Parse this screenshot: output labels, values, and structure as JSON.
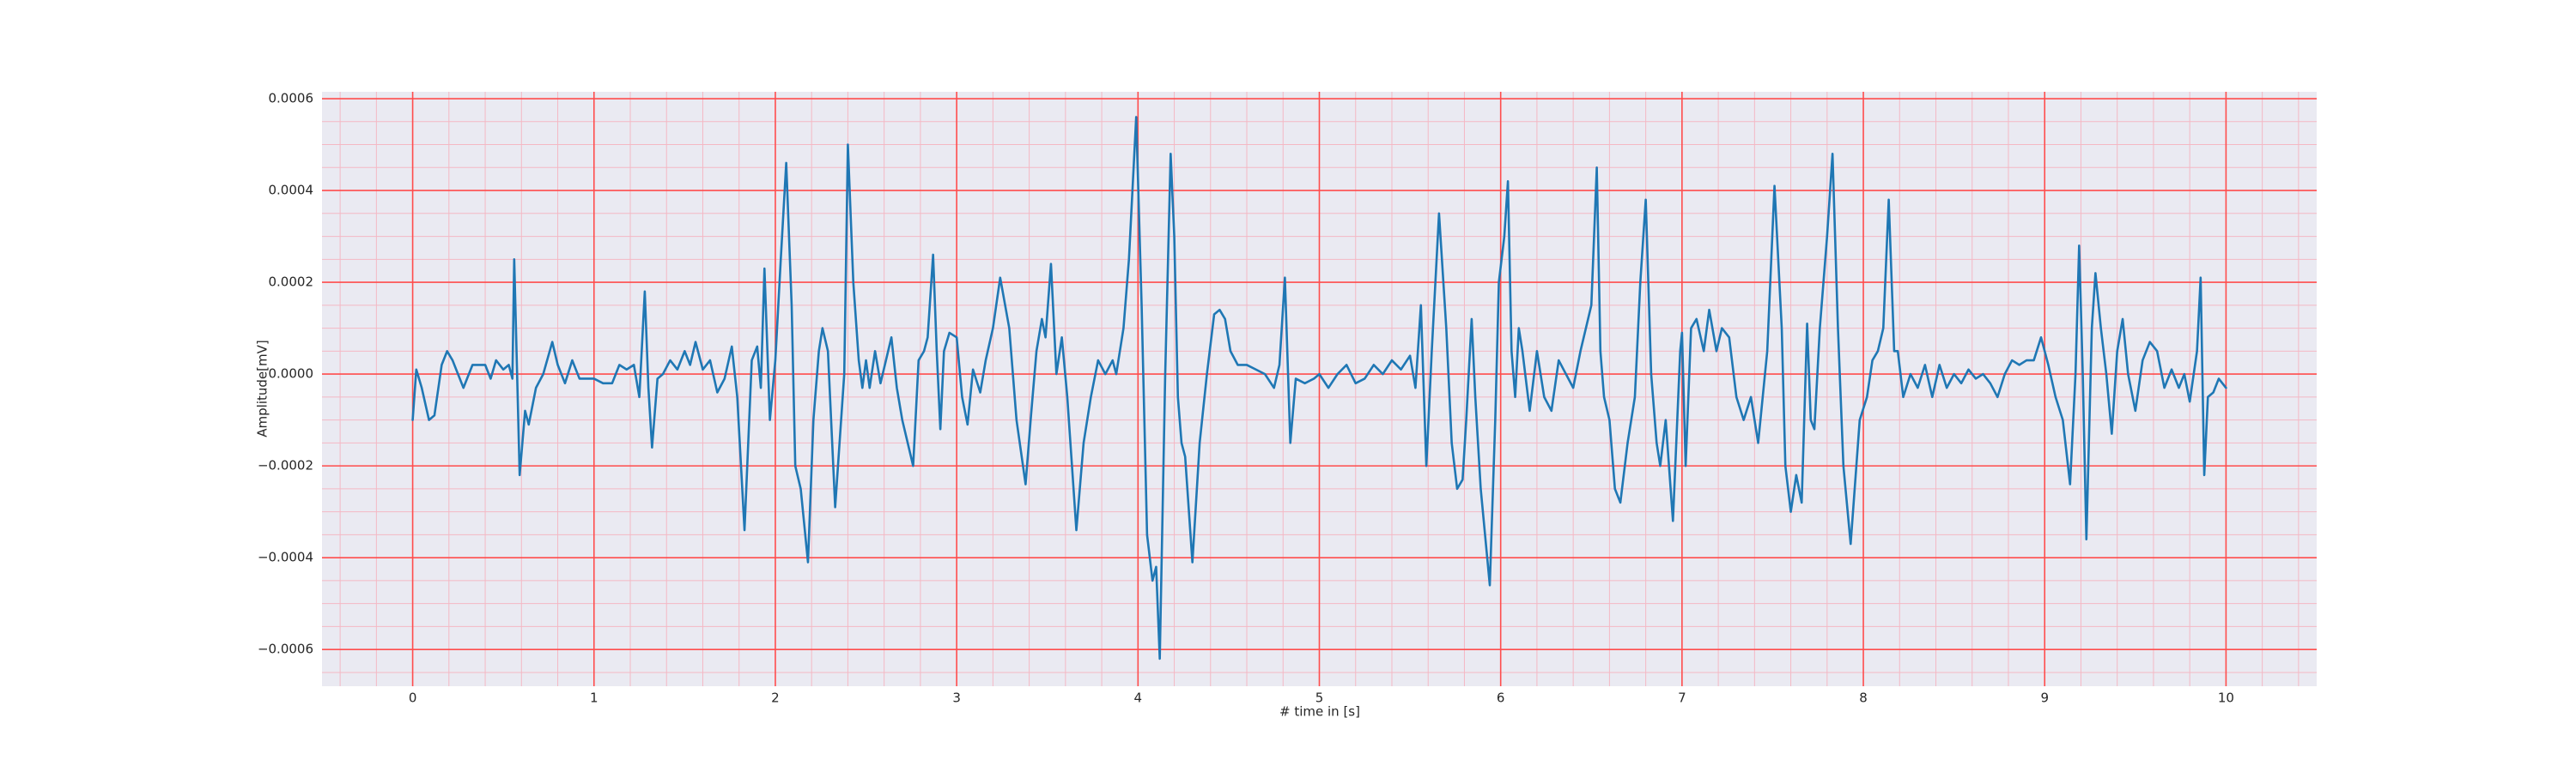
{
  "chart_data": {
    "type": "line",
    "xlabel": "# time in [s]",
    "ylabel": "Amplitude[mV]",
    "xlim": [
      -0.5,
      10.5
    ],
    "ylim": [
      -0.00068,
      0.000615
    ],
    "xticks": [
      0,
      1,
      2,
      3,
      4,
      5,
      6,
      7,
      8,
      9,
      10
    ],
    "yticks": [
      {
        "value": -0.0006,
        "label": "−0.0006"
      },
      {
        "value": -0.0004,
        "label": "−0.0004"
      },
      {
        "value": -0.0002,
        "label": "−0.0002"
      },
      {
        "value": 0,
        "label": "0.0000"
      },
      0.0002,
      0.0004,
      0.0006
    ],
    "grid": true,
    "grid_color": "#ff4d4d",
    "minor_grid": true,
    "minor_grid_color": "#f4b8c4",
    "x_minor_step": 0.2,
    "y_minor_step": 5e-05,
    "background": "#eaeaf2",
    "series": [
      {
        "color": "#1f77b4",
        "x": [
          0.0,
          0.02,
          0.05,
          0.09,
          0.12,
          0.16,
          0.19,
          0.22,
          0.25,
          0.28,
          0.33,
          0.4,
          0.43,
          0.46,
          0.5,
          0.53,
          0.55,
          0.56,
          0.59,
          0.62,
          0.64,
          0.68,
          0.72,
          0.77,
          0.8,
          0.84,
          0.88,
          0.92,
          0.97,
          1.0,
          1.05,
          1.1,
          1.14,
          1.18,
          1.22,
          1.25,
          1.28,
          1.3,
          1.32,
          1.35,
          1.38,
          1.42,
          1.46,
          1.5,
          1.53,
          1.56,
          1.6,
          1.64,
          1.68,
          1.72,
          1.76,
          1.79,
          1.83,
          1.87,
          1.9,
          1.92,
          1.94,
          1.97,
          2.0,
          2.03,
          2.06,
          2.09,
          2.11,
          2.14,
          2.18,
          2.21,
          2.24,
          2.26,
          2.29,
          2.33,
          2.38,
          2.4,
          2.43,
          2.46,
          2.48,
          2.5,
          2.52,
          2.55,
          2.58,
          2.61,
          2.64,
          2.67,
          2.7,
          2.76,
          2.79,
          2.82,
          2.84,
          2.87,
          2.89,
          2.91,
          2.93,
          2.96,
          3.0,
          3.03,
          3.06,
          3.09,
          3.13,
          3.16,
          3.2,
          3.24,
          3.29,
          3.33,
          3.38,
          3.41,
          3.44,
          3.47,
          3.49,
          3.52,
          3.55,
          3.58,
          3.61,
          3.66,
          3.7,
          3.74,
          3.78,
          3.82,
          3.86,
          3.88,
          3.92,
          3.95,
          3.99,
          4.02,
          4.05,
          4.08,
          4.1,
          4.12,
          4.15,
          4.18,
          4.2,
          4.22,
          4.24,
          4.26,
          4.3,
          4.34,
          4.38,
          4.42,
          4.45,
          4.48,
          4.51,
          4.55,
          4.6,
          4.65,
          4.7,
          4.75,
          4.78,
          4.81,
          4.84,
          4.87,
          4.92,
          4.97,
          5.0,
          5.05,
          5.1,
          5.15,
          5.2,
          5.25,
          5.3,
          5.35,
          5.4,
          5.45,
          5.5,
          5.53,
          5.56,
          5.59,
          5.62,
          5.66,
          5.7,
          5.73,
          5.76,
          5.79,
          5.81,
          5.84,
          5.86,
          5.89,
          5.94,
          5.97,
          5.99,
          6.02,
          6.04,
          6.06,
          6.08,
          6.1,
          6.12,
          6.16,
          6.2,
          6.24,
          6.28,
          6.32,
          6.36,
          6.4,
          6.44,
          6.5,
          6.53,
          6.55,
          6.57,
          6.6,
          6.63,
          6.66,
          6.7,
          6.74,
          6.77,
          6.8,
          6.83,
          6.86,
          6.88,
          6.91,
          6.95,
          6.99,
          7.0,
          7.02,
          7.05,
          7.08,
          7.12,
          7.15,
          7.19,
          7.22,
          7.26,
          7.3,
          7.34,
          7.38,
          7.42,
          7.47,
          7.51,
          7.55,
          7.57,
          7.6,
          7.63,
          7.66,
          7.69,
          7.71,
          7.73,
          7.76,
          7.8,
          7.83,
          7.86,
          7.89,
          7.93,
          7.98,
          8.02,
          8.05,
          8.08,
          8.11,
          8.14,
          8.17,
          8.19,
          8.22,
          8.26,
          8.3,
          8.34,
          8.38,
          8.42,
          8.46,
          8.5,
          8.54,
          8.58,
          8.62,
          8.66,
          8.7,
          8.74,
          8.78,
          8.82,
          8.86,
          8.9,
          8.94,
          8.98,
          9.02,
          9.06,
          9.1,
          9.14,
          9.17,
          9.19,
          9.21,
          9.23,
          9.26,
          9.28,
          9.31,
          9.34,
          9.37,
          9.4,
          9.43,
          9.46,
          9.5,
          9.54,
          9.58,
          9.62,
          9.66,
          9.7,
          9.74,
          9.77,
          9.8,
          9.84,
          9.86,
          9.88,
          9.9,
          9.93,
          9.96,
          10.0
        ],
        "values": [
          -0.0001,
          1e-05,
          -3e-05,
          -0.0001,
          -9e-05,
          2e-05,
          5e-05,
          3e-05,
          0,
          -3e-05,
          2e-05,
          2e-05,
          -1e-05,
          3e-05,
          1e-05,
          2e-05,
          -1e-05,
          0.00025,
          -0.00022,
          -8e-05,
          -0.00011,
          -3e-05,
          0,
          7e-05,
          2e-05,
          -2e-05,
          3e-05,
          -1e-05,
          -1e-05,
          -1e-05,
          -2e-05,
          -2e-05,
          2e-05,
          1e-05,
          2e-05,
          -5e-05,
          0.00018,
          -3e-05,
          -0.00016,
          -1e-05,
          0,
          3e-05,
          1e-05,
          5e-05,
          2e-05,
          7e-05,
          1e-05,
          3e-05,
          -4e-05,
          -1e-05,
          6e-05,
          -5e-05,
          -0.00034,
          3e-05,
          6e-05,
          -3e-05,
          0.00023,
          -0.0001,
          3e-05,
          0.00025,
          0.00046,
          0.00015,
          -0.0002,
          -0.00025,
          -0.00041,
          -0.0001,
          5e-05,
          0.0001,
          5e-05,
          -0.00029,
          0,
          0.0005,
          0.0002,
          3e-05,
          -3e-05,
          3e-05,
          -3e-05,
          5e-05,
          -2e-05,
          3e-05,
          8e-05,
          -3e-05,
          -0.0001,
          -0.0002,
          3e-05,
          5e-05,
          8e-05,
          0.00026,
          5e-05,
          -0.00012,
          5e-05,
          9e-05,
          8e-05,
          -5e-05,
          -0.00011,
          1e-05,
          -4e-05,
          3e-05,
          0.0001,
          0.00021,
          0.0001,
          -0.0001,
          -0.00024,
          -9e-05,
          5e-05,
          0.00012,
          8e-05,
          0.00024,
          0,
          8e-05,
          -5e-05,
          -0.00034,
          -0.00015,
          -5e-05,
          3e-05,
          0,
          3e-05,
          0,
          0.0001,
          0.00025,
          0.00056,
          0.00015,
          -0.00035,
          -0.00045,
          -0.00042,
          -0.00062,
          0,
          0.00048,
          0.0003,
          -5e-05,
          -0.00015,
          -0.00018,
          -0.00041,
          -0.00015,
          0,
          0.00013,
          0.00014,
          0.00012,
          5e-05,
          2e-05,
          2e-05,
          1e-05,
          0,
          -3e-05,
          2e-05,
          0.00021,
          -0.00015,
          -1e-05,
          -2e-05,
          -1e-05,
          0,
          -3e-05,
          0,
          2e-05,
          -2e-05,
          -1e-05,
          2e-05,
          0,
          3e-05,
          1e-05,
          4e-05,
          -3e-05,
          0.00015,
          -0.0002,
          5e-05,
          0.00035,
          0.0001,
          -0.00015,
          -0.00025,
          -0.00023,
          -0.0001,
          0.00012,
          -5e-05,
          -0.00025,
          -0.00046,
          -0.0001,
          0.0002,
          0.0003,
          0.00042,
          5e-05,
          -5e-05,
          0.0001,
          5e-05,
          -8e-05,
          5e-05,
          -5e-05,
          -8e-05,
          3e-05,
          0,
          -3e-05,
          5e-05,
          0.00015,
          0.00045,
          5e-05,
          -5e-05,
          -0.0001,
          -0.00025,
          -0.00028,
          -0.00015,
          -5e-05,
          0.0002,
          0.00038,
          0,
          -0.00015,
          -0.0002,
          -0.0001,
          -0.00032,
          5e-05,
          9e-05,
          -0.0002,
          0.0001,
          0.00012,
          5e-05,
          0.00014,
          5e-05,
          0.0001,
          8e-05,
          -5e-05,
          -0.0001,
          -5e-05,
          -0.00015,
          5e-05,
          0.00041,
          0.0001,
          -0.0002,
          -0.0003,
          -0.00022,
          -0.00028,
          0.00011,
          -0.0001,
          -0.00012,
          0.0001,
          0.0003,
          0.00048,
          0.0001,
          -0.0002,
          -0.00037,
          -0.0001,
          -5e-05,
          3e-05,
          5e-05,
          0.0001,
          0.00038,
          5e-05,
          5e-05,
          -5e-05,
          0,
          -3e-05,
          2e-05,
          -5e-05,
          2e-05,
          -3e-05,
          0,
          -2e-05,
          1e-05,
          -1e-05,
          0,
          -2e-05,
          -5e-05,
          0,
          3e-05,
          2e-05,
          3e-05,
          3e-05,
          8e-05,
          2e-05,
          -5e-05,
          -0.0001,
          -0.00024,
          0,
          0.00028,
          0,
          -0.00036,
          0.0001,
          0.00022,
          0.0001,
          0,
          -0.00013,
          5e-05,
          0.00012,
          0,
          -8e-05,
          3e-05,
          7e-05,
          5e-05,
          -3e-05,
          1e-05,
          -3e-05,
          0,
          -6e-05,
          5e-05,
          0.00021,
          -0.00022,
          -5e-05,
          -4e-05,
          -1e-05,
          -3e-05
        ]
      }
    ]
  }
}
